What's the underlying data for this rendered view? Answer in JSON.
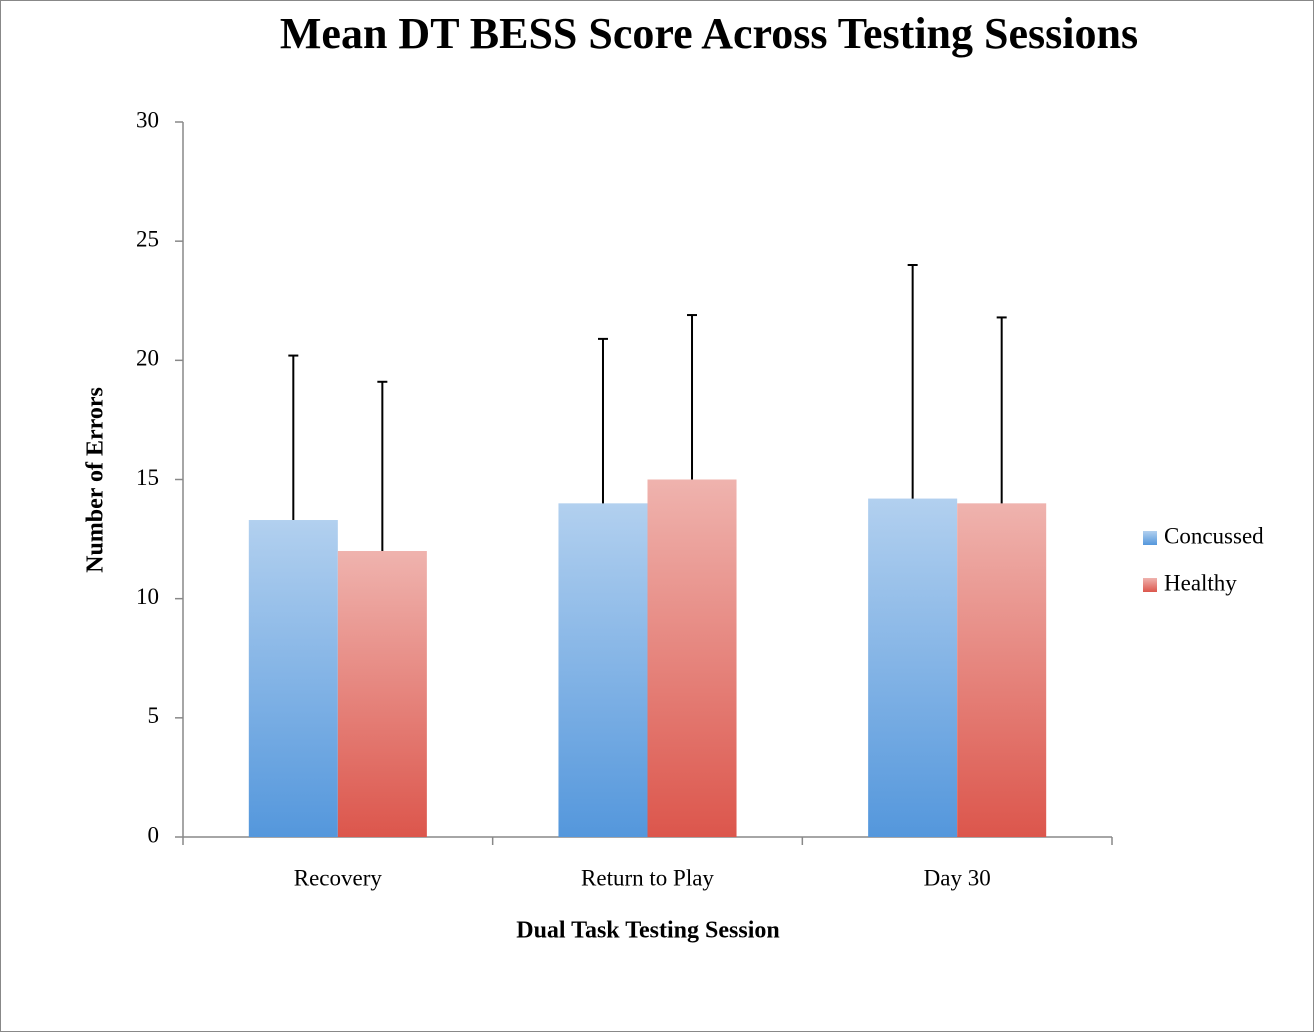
{
  "chart_data": {
    "type": "bar",
    "title": "Mean DT BESS Score Across Testing Sessions",
    "x_label": "Dual Task Testing Session",
    "y_label": "Number of Errors",
    "categories": [
      "Recovery",
      "Return to Play",
      "Day 30"
    ],
    "series": [
      {
        "name": "Concussed",
        "color": "#5497dc",
        "values": [
          13.3,
          14.0,
          14.2
        ],
        "errors": [
          6.9,
          6.9,
          9.8
        ]
      },
      {
        "name": "Healthy",
        "color": "#dc564c",
        "values": [
          12.0,
          15.0,
          14.0
        ],
        "errors": [
          7.1,
          6.9,
          7.8
        ]
      }
    ],
    "ylim": [
      0,
      30
    ],
    "yticks": [
      0,
      5,
      10,
      15,
      20,
      25,
      30
    ],
    "grid": false,
    "legend": "right"
  }
}
